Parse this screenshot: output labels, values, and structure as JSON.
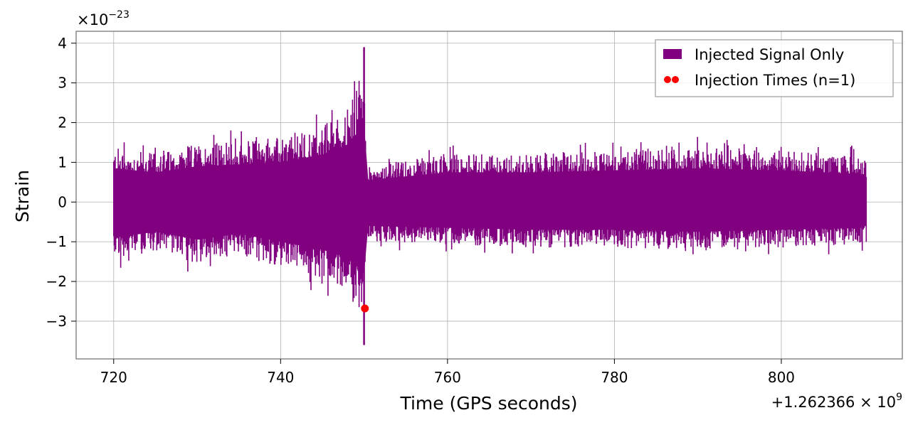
{
  "chart_data": {
    "type": "line",
    "xlabel": "Time (GPS seconds)",
    "ylabel": "Strain",
    "x_offset_label": "+1.262366 × 10",
    "x_offset_exponent": "9",
    "y_multiplier_label": "×10",
    "y_multiplier_exponent": "−23",
    "xlim": [
      715.5,
      814.5
    ],
    "ylim": [
      -3.95,
      4.3
    ],
    "x_ticks": [
      720,
      740,
      760,
      780,
      800
    ],
    "x_tick_labels": [
      "720",
      "740",
      "760",
      "780",
      "800"
    ],
    "y_ticks": [
      -3,
      -2,
      -1,
      0,
      1,
      2,
      3,
      4
    ],
    "y_tick_labels": [
      "−3",
      "−2",
      "−1",
      "0",
      "1",
      "2",
      "3",
      "4"
    ],
    "grid": true,
    "legend_position": "top-right",
    "series": [
      {
        "name": "Injected Signal Only",
        "color": "#800080",
        "kind": "noise-band",
        "x_start": 720,
        "x_end": 810.2,
        "envelope": [
          {
            "x": 720,
            "high": 1.7,
            "low": -1.8
          },
          {
            "x": 725,
            "high": 1.5,
            "low": -1.5
          },
          {
            "x": 730,
            "high": 1.8,
            "low": -1.9
          },
          {
            "x": 735,
            "high": 1.9,
            "low": -1.6
          },
          {
            "x": 740,
            "high": 2.0,
            "low": -2.0
          },
          {
            "x": 745,
            "high": 2.4,
            "low": -2.4
          },
          {
            "x": 748,
            "high": 2.9,
            "low": -2.8
          },
          {
            "x": 750,
            "high": 3.9,
            "low": -3.6
          },
          {
            "x": 750.3,
            "high": 1.1,
            "low": -1.2
          },
          {
            "x": 760,
            "high": 1.5,
            "low": -1.3
          },
          {
            "x": 770,
            "high": 1.5,
            "low": -1.4
          },
          {
            "x": 780,
            "high": 1.6,
            "low": -1.4
          },
          {
            "x": 790,
            "high": 1.7,
            "low": -1.5
          },
          {
            "x": 800,
            "high": 1.6,
            "low": -1.4
          },
          {
            "x": 810.2,
            "high": 1.4,
            "low": -1.3
          }
        ]
      },
      {
        "name": "Injection Times (n=1)",
        "color": "#ff0000",
        "kind": "scatter",
        "points": [
          {
            "x": 750.1,
            "y": -2.68
          }
        ]
      }
    ]
  }
}
